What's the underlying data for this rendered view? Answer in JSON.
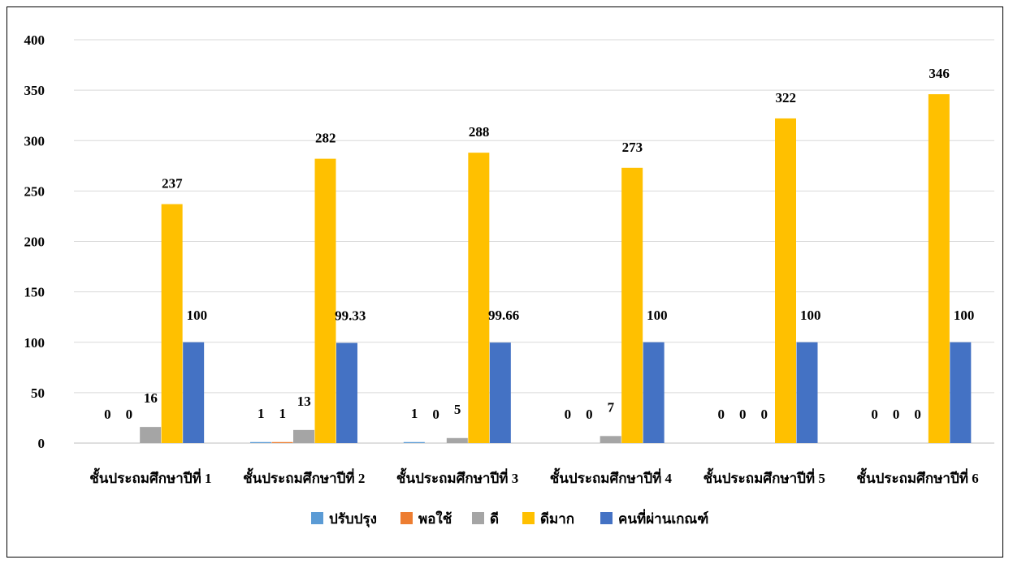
{
  "chart_data": {
    "type": "bar",
    "categories": [
      "ชั้นประถมศึกษาปีที่ 1",
      "ชั้นประถมศึกษาปีที่ 2",
      "ชั้นประถมศึกษาปีที่ 3",
      "ชั้นประถมศึกษาปีที่ 4",
      "ชั้นประถมศึกษาปีที่ 5",
      "ชั้นประถมศึกษาปีที่ 6"
    ],
    "series": [
      {
        "name": "ปรับปรุง",
        "color": "#5b9bd5",
        "values": [
          0,
          1,
          1,
          0,
          0,
          0
        ],
        "labels": [
          "0",
          "1",
          "1",
          "0",
          "0",
          "0"
        ]
      },
      {
        "name": "พอใช้",
        "color": "#ed7d31",
        "values": [
          0,
          1,
          0,
          0,
          0,
          0
        ],
        "labels": [
          "0",
          "1",
          "0",
          "0",
          "0",
          "0"
        ]
      },
      {
        "name": "ดี",
        "color": "#a5a5a5",
        "values": [
          16,
          13,
          5,
          7,
          0,
          0
        ],
        "labels": [
          "16",
          "13",
          "5",
          "7",
          "0",
          "0"
        ]
      },
      {
        "name": "ดีมาก",
        "color": "#ffc000",
        "values": [
          237,
          282,
          288,
          273,
          322,
          346
        ],
        "labels": [
          "237",
          "282",
          "288",
          "273",
          "322",
          "346"
        ]
      },
      {
        "name": "คนที่ผ่านเกณฑ์",
        "color": "#4472c4",
        "values": [
          100,
          99.33,
          99.66,
          100,
          100,
          100
        ],
        "labels": [
          "100",
          "99.33",
          "99.66",
          "100",
          "100",
          "100"
        ]
      }
    ],
    "ylim": [
      0,
      400
    ],
    "yticks": [
      "0",
      "50",
      "100",
      "150",
      "200",
      "250",
      "300",
      "350",
      "400"
    ],
    "grid": true,
    "gridline_color": "#d9d9d9",
    "legend_position": "bottom"
  }
}
